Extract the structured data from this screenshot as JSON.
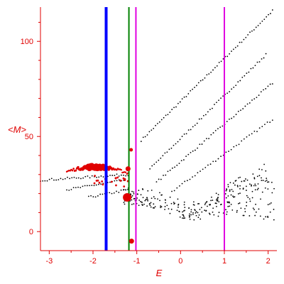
{
  "chart_data": {
    "type": "scatter",
    "title": "",
    "xlabel": "E",
    "ylabel": "<M>",
    "xlim": [
      -3.2,
      2.2
    ],
    "ylim": [
      -10,
      118
    ],
    "x_ticks": [
      {
        "value": -3,
        "label": "-3"
      },
      {
        "value": -2,
        "label": "-2"
      },
      {
        "value": -1,
        "label": "-1"
      },
      {
        "value": 0,
        "label": "0"
      },
      {
        "value": 1,
        "label": "1"
      },
      {
        "value": 2,
        "label": "2"
      }
    ],
    "y_ticks": [
      {
        "value": 0,
        "label": "0"
      },
      {
        "value": 50,
        "label": "50"
      },
      {
        "value": 100,
        "label": "100"
      }
    ],
    "grid": false,
    "legend": "none",
    "vertical_lines": [
      {
        "x": -1.7,
        "color": "#0000ff"
      },
      {
        "x": -1.18,
        "color": "#008000"
      },
      {
        "x": -1.02,
        "color": "#e000e0"
      },
      {
        "x": 1.0,
        "color": "#e000e0"
      }
    ],
    "red_markers": [
      {
        "x": -1.22,
        "y": 18,
        "size": "large"
      },
      {
        "x": -1.2,
        "y": 33,
        "size": "medium"
      },
      {
        "x": -1.13,
        "y": 43,
        "size": "small"
      },
      {
        "x": -1.12,
        "y": -5,
        "size": "medium"
      }
    ],
    "black_families": [
      {
        "x0": -0.9,
        "y0": 48,
        "x1": 2.1,
        "y1": 116,
        "n": 65
      },
      {
        "x0": -0.7,
        "y0": 33,
        "x1": 1.95,
        "y1": 93,
        "n": 55
      },
      {
        "x0": -0.55,
        "y0": 26,
        "x1": 2.1,
        "y1": 78,
        "n": 52
      },
      {
        "x0": -0.2,
        "y0": 21,
        "x1": 2.1,
        "y1": 59,
        "n": 40
      },
      {
        "x0": -3.2,
        "y0": 27,
        "x1": -1.2,
        "y1": 30,
        "n": 40
      },
      {
        "x0": -2.6,
        "y0": 22,
        "x1": -1.3,
        "y1": 27,
        "n": 26
      },
      {
        "x0": -2.1,
        "y0": 18,
        "x1": -1.2,
        "y1": 22,
        "n": 18
      }
    ],
    "red_band": {
      "x0": -2.6,
      "x1": -1.2,
      "peak_x": -1.95,
      "peak_y": 34,
      "n": 55
    },
    "black_cloud": {
      "x0": -1.3,
      "x1": 2.15,
      "y_min": -2,
      "y_max": 50,
      "n": 300
    },
    "colors": {
      "axis": "#e00000",
      "points": "#000000",
      "highlight": "#e00000"
    }
  }
}
